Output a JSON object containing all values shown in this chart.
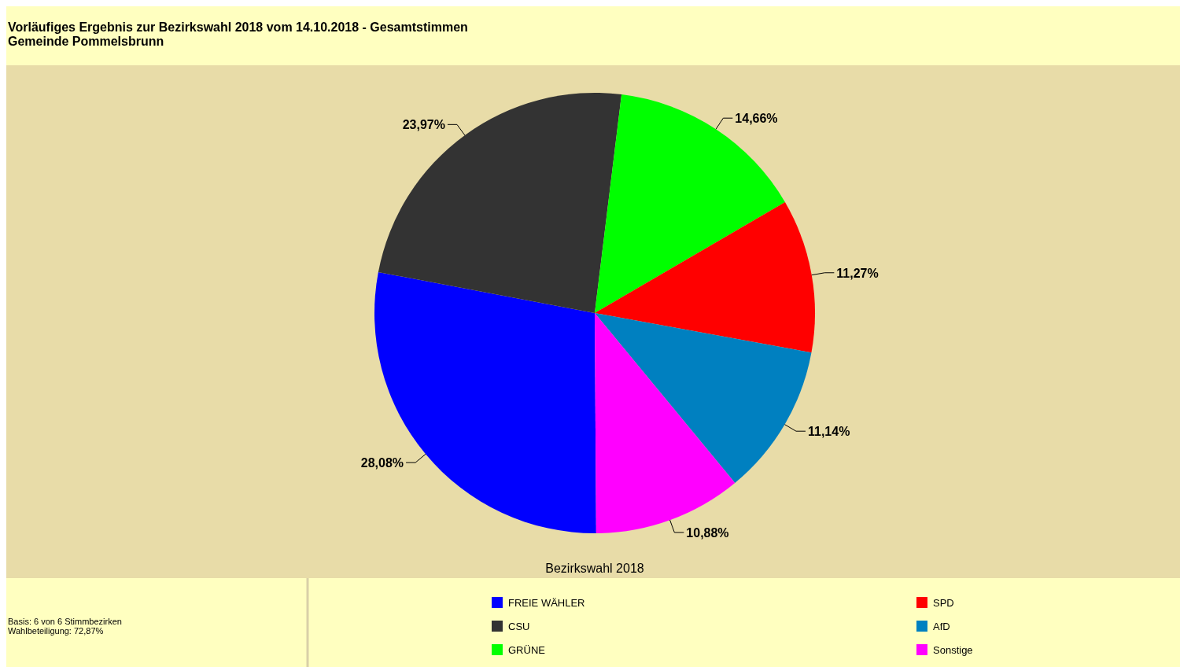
{
  "chart_data": {
    "type": "pie",
    "title": "Vorläufiges Ergebnis zur Bezirkswahl 2018 vom 14.10.2018 - Gesamtstimmen",
    "subtitle": "Gemeinde Pommelsbrunn",
    "xlabel": "Bezirkswahl 2018",
    "categories": [
      "FREIE WÄHLER",
      "CSU",
      "GRÜNE",
      "SPD",
      "AfD",
      "Sonstige"
    ],
    "values": [
      28.08,
      23.97,
      14.66,
      11.27,
      11.14,
      10.88
    ],
    "value_labels": [
      "28,08%",
      "23,97%",
      "14,66%",
      "11,27%",
      "11,14%",
      "10,88%"
    ],
    "colors": [
      "#0000ff",
      "#333333",
      "#00ff00",
      "#ff0000",
      "#0080c0",
      "#ff00ff"
    ],
    "legend": "bottom",
    "annotations": [
      "Basis: 6 von 6 Stimmbezirken",
      "Wahlbeteiligung: 72,87%"
    ]
  }
}
